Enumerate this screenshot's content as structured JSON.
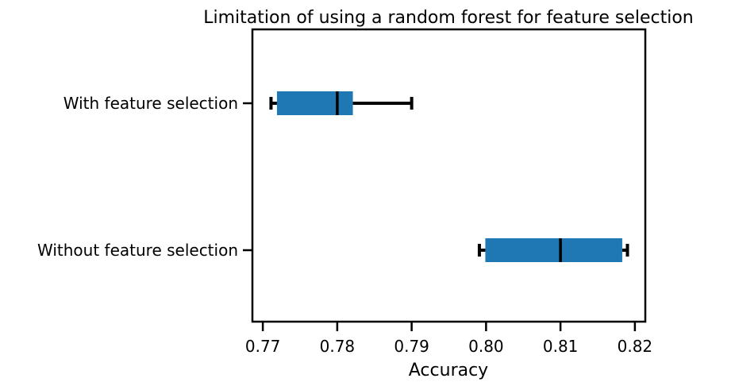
{
  "chart_data": {
    "type": "boxplot",
    "orientation": "horizontal",
    "title": "Limitation of using a random forest for feature selection",
    "xlabel": "Accuracy",
    "ylabel": "",
    "xlim": [
      0.7686,
      0.8214
    ],
    "xticks": [
      "0.77",
      "0.78",
      "0.79",
      "0.80",
      "0.81",
      "0.82"
    ],
    "xtick_values": [
      0.77,
      0.78,
      0.79,
      0.8,
      0.81,
      0.82
    ],
    "categories": [
      "With feature selection",
      "Without feature selection"
    ],
    "boxes": [
      {
        "label": "With feature selection",
        "whisker_low": 0.7711,
        "q1": 0.7719,
        "median": 0.78,
        "q3": 0.7821,
        "whisker_high": 0.79
      },
      {
        "label": "Without feature selection",
        "whisker_low": 0.7991,
        "q1": 0.7999,
        "median": 0.81,
        "q3": 0.8183,
        "whisker_high": 0.819
      }
    ],
    "grid": false,
    "colors": {
      "box_fill": "#1f77b4",
      "lines": "#000000"
    }
  }
}
